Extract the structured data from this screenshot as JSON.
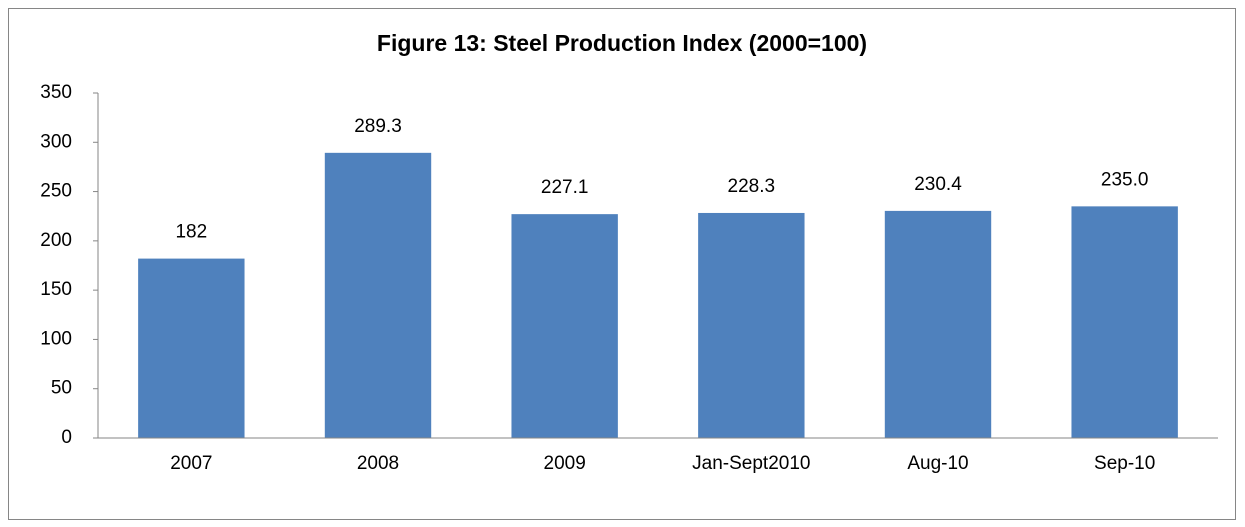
{
  "chart_data": {
    "type": "bar",
    "title": "Figure 13: Steel Production Index  (2000=100)",
    "categories": [
      "2007",
      "2008",
      "2009",
      "Jan-Sept2010",
      "Aug-10",
      "Sep-10"
    ],
    "values": [
      182,
      289.3,
      227.1,
      228.3,
      230.4,
      235.0
    ],
    "value_labels": [
      "182",
      "289.3",
      "227.1",
      "228.3",
      "230.4",
      "235.0"
    ],
    "color": "#4f81bd",
    "ylim": [
      0,
      350
    ],
    "yticks": [
      0,
      50,
      100,
      150,
      200,
      250,
      300,
      350
    ],
    "grid": false
  }
}
